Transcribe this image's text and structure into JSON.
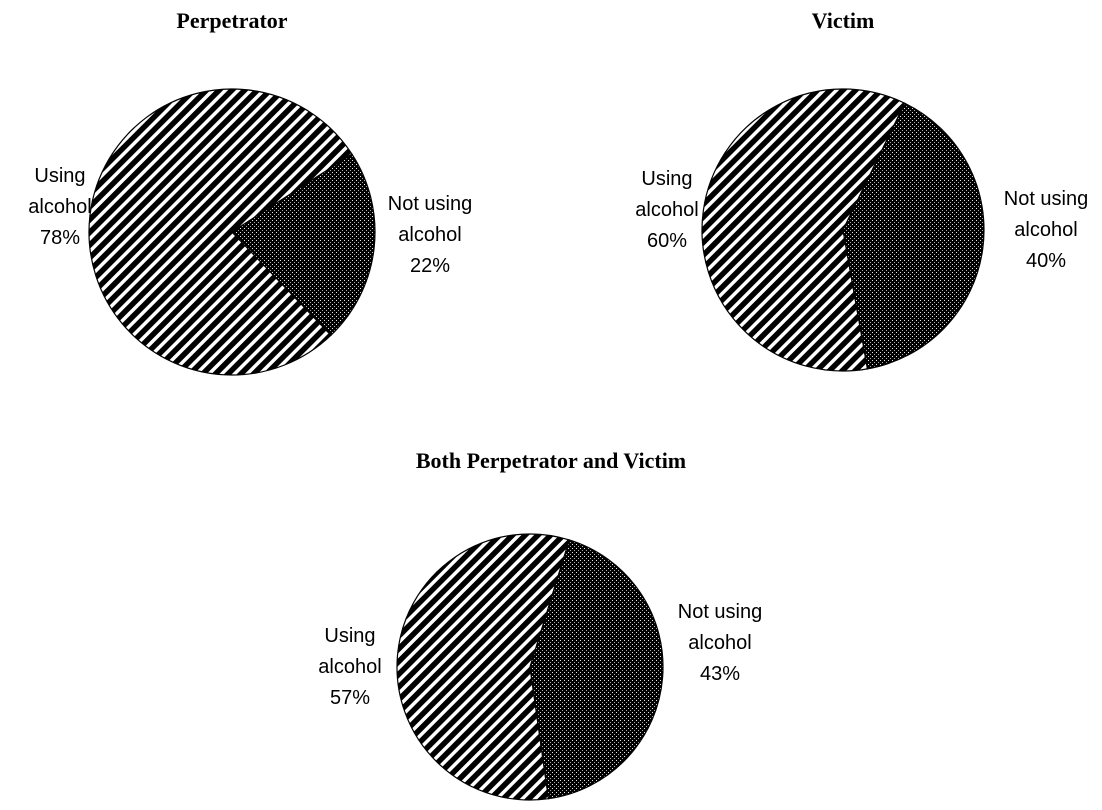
{
  "chart_data": [
    {
      "type": "pie",
      "title": "Perpetrator",
      "categories": [
        "Using alcohol",
        "Not using alcohol"
      ],
      "values": [
        78,
        22
      ],
      "value_labels": [
        "78%",
        "22%"
      ],
      "colors": [
        "#000000",
        "#c4c4c4"
      ]
    },
    {
      "type": "pie",
      "title": "Victim",
      "categories": [
        "Using alcohol",
        "Not using alcohol"
      ],
      "values": [
        60,
        40
      ],
      "value_labels": [
        "60%",
        "40%"
      ],
      "colors": [
        "#000000",
        "#c4c4c4"
      ]
    },
    {
      "type": "pie",
      "title": "Both Perpetrator and Victim",
      "categories": [
        "Using alcohol",
        "Not using alcohol"
      ],
      "values": [
        57,
        43
      ],
      "value_labels": [
        "57%",
        "43%"
      ],
      "colors": [
        "#000000",
        "#c4c4c4"
      ]
    }
  ]
}
